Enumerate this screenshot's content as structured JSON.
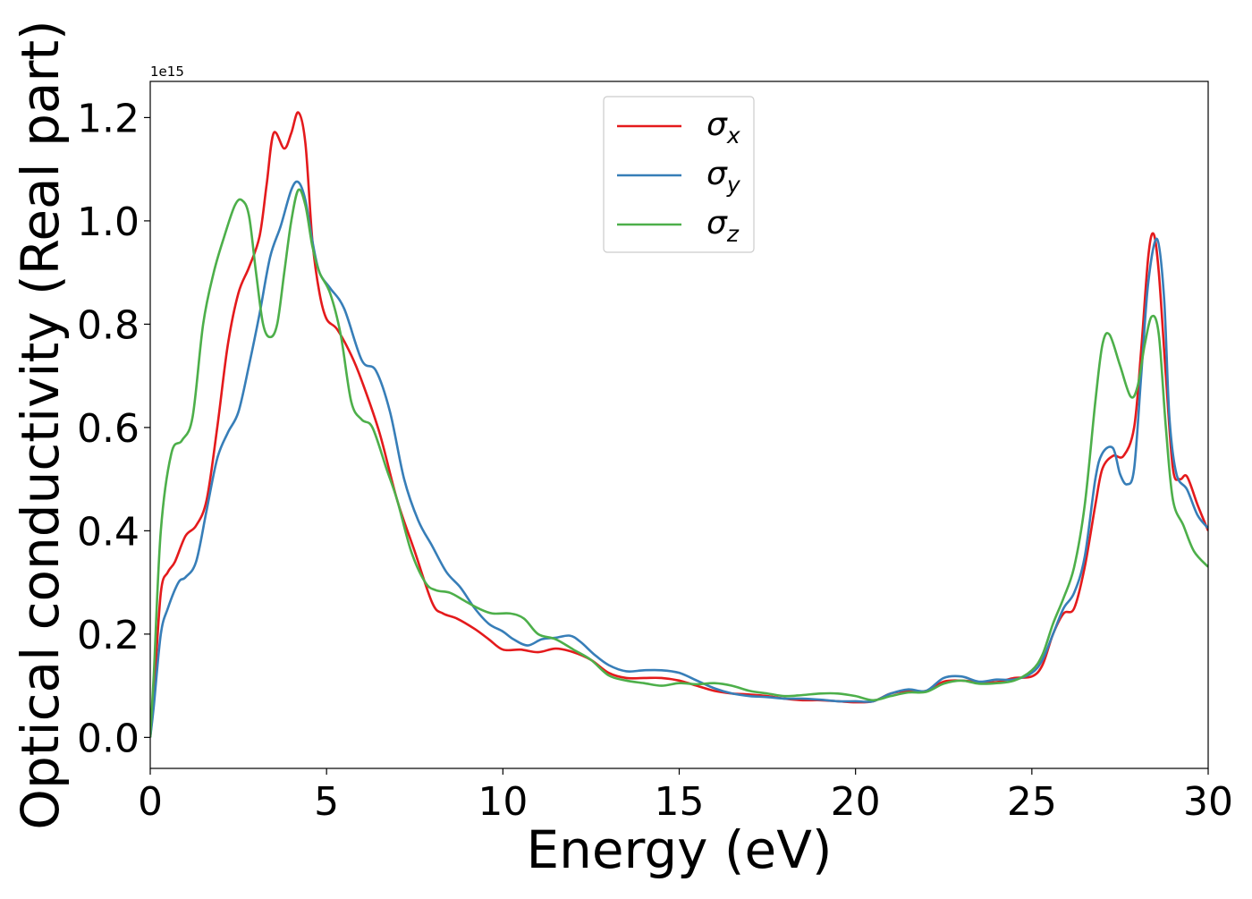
{
  "chart_data": {
    "type": "line",
    "title": "",
    "xlabel": "Energy (eV)",
    "ylabel": "Optical conductivity (Real part)",
    "y_offset_label": "1e15",
    "xlim": [
      0,
      30
    ],
    "ylim": [
      -0.06,
      1.27
    ],
    "x_ticks": [
      0,
      5,
      10,
      15,
      20,
      25,
      30
    ],
    "x_tick_labels": [
      "0",
      "5",
      "10",
      "15",
      "20",
      "25",
      "30"
    ],
    "y_ticks": [
      0.0,
      0.2,
      0.4,
      0.6,
      0.8,
      1.0,
      1.2
    ],
    "y_tick_labels": [
      "0.0",
      "0.2",
      "0.4",
      "0.6",
      "0.8",
      "1.0",
      "1.2"
    ],
    "grid": false,
    "legend_position": "top-center",
    "series": [
      {
        "name": "σx",
        "symbol": "σ",
        "subscript": "x",
        "color": "#e41a1c",
        "points": [
          [
            0,
            0.0
          ],
          [
            0.1,
            0.08
          ],
          [
            0.3,
            0.28
          ],
          [
            0.5,
            0.32
          ],
          [
            0.7,
            0.34
          ],
          [
            1.0,
            0.39
          ],
          [
            1.3,
            0.41
          ],
          [
            1.6,
            0.46
          ],
          [
            1.9,
            0.6
          ],
          [
            2.2,
            0.76
          ],
          [
            2.5,
            0.86
          ],
          [
            2.8,
            0.91
          ],
          [
            3.1,
            0.97
          ],
          [
            3.3,
            1.07
          ],
          [
            3.5,
            1.17
          ],
          [
            3.8,
            1.14
          ],
          [
            4.0,
            1.17
          ],
          [
            4.2,
            1.21
          ],
          [
            4.4,
            1.15
          ],
          [
            4.6,
            0.96
          ],
          [
            4.8,
            0.86
          ],
          [
            5.0,
            0.81
          ],
          [
            5.3,
            0.79
          ],
          [
            5.7,
            0.74
          ],
          [
            6.0,
            0.69
          ],
          [
            6.5,
            0.59
          ],
          [
            7.0,
            0.46
          ],
          [
            7.5,
            0.36
          ],
          [
            8.0,
            0.26
          ],
          [
            8.3,
            0.24
          ],
          [
            8.7,
            0.23
          ],
          [
            9.2,
            0.21
          ],
          [
            9.6,
            0.19
          ],
          [
            10.0,
            0.17
          ],
          [
            10.5,
            0.17
          ],
          [
            11.0,
            0.165
          ],
          [
            11.5,
            0.172
          ],
          [
            12.0,
            0.165
          ],
          [
            12.5,
            0.15
          ],
          [
            13.0,
            0.125
          ],
          [
            13.5,
            0.115
          ],
          [
            14.0,
            0.115
          ],
          [
            14.5,
            0.115
          ],
          [
            15.0,
            0.11
          ],
          [
            15.5,
            0.1
          ],
          [
            16.0,
            0.09
          ],
          [
            16.5,
            0.085
          ],
          [
            17.0,
            0.083
          ],
          [
            17.5,
            0.08
          ],
          [
            18.0,
            0.075
          ],
          [
            18.5,
            0.072
          ],
          [
            19.0,
            0.072
          ],
          [
            19.5,
            0.07
          ],
          [
            20.0,
            0.068
          ],
          [
            20.5,
            0.07
          ],
          [
            21.0,
            0.085
          ],
          [
            21.5,
            0.09
          ],
          [
            22.0,
            0.09
          ],
          [
            22.5,
            0.108
          ],
          [
            23.0,
            0.11
          ],
          [
            23.5,
            0.107
          ],
          [
            24.0,
            0.107
          ],
          [
            24.5,
            0.115
          ],
          [
            25.0,
            0.118
          ],
          [
            25.3,
            0.14
          ],
          [
            25.6,
            0.2
          ],
          [
            25.9,
            0.24
          ],
          [
            26.2,
            0.25
          ],
          [
            26.5,
            0.33
          ],
          [
            26.8,
            0.45
          ],
          [
            27.0,
            0.52
          ],
          [
            27.3,
            0.545
          ],
          [
            27.6,
            0.545
          ],
          [
            27.9,
            0.6
          ],
          [
            28.1,
            0.75
          ],
          [
            28.3,
            0.93
          ],
          [
            28.45,
            0.975
          ],
          [
            28.6,
            0.9
          ],
          [
            28.8,
            0.7
          ],
          [
            29.0,
            0.52
          ],
          [
            29.2,
            0.5
          ],
          [
            29.4,
            0.505
          ],
          [
            29.7,
            0.45
          ],
          [
            30.0,
            0.4
          ]
        ]
      },
      {
        "name": "σy",
        "symbol": "σ",
        "subscript": "y",
        "color": "#377eb8",
        "points": [
          [
            0,
            0.0
          ],
          [
            0.1,
            0.06
          ],
          [
            0.3,
            0.2
          ],
          [
            0.5,
            0.25
          ],
          [
            0.8,
            0.3
          ],
          [
            1.0,
            0.31
          ],
          [
            1.3,
            0.34
          ],
          [
            1.6,
            0.44
          ],
          [
            1.9,
            0.54
          ],
          [
            2.2,
            0.59
          ],
          [
            2.5,
            0.63
          ],
          [
            2.8,
            0.72
          ],
          [
            3.1,
            0.82
          ],
          [
            3.4,
            0.93
          ],
          [
            3.7,
            0.99
          ],
          [
            4.0,
            1.06
          ],
          [
            4.2,
            1.075
          ],
          [
            4.4,
            1.04
          ],
          [
            4.6,
            0.96
          ],
          [
            4.8,
            0.9
          ],
          [
            5.1,
            0.87
          ],
          [
            5.5,
            0.83
          ],
          [
            6.0,
            0.73
          ],
          [
            6.4,
            0.71
          ],
          [
            6.8,
            0.63
          ],
          [
            7.2,
            0.5
          ],
          [
            7.6,
            0.42
          ],
          [
            8.0,
            0.37
          ],
          [
            8.4,
            0.32
          ],
          [
            8.8,
            0.29
          ],
          [
            9.2,
            0.25
          ],
          [
            9.6,
            0.22
          ],
          [
            10.0,
            0.205
          ],
          [
            10.3,
            0.19
          ],
          [
            10.7,
            0.178
          ],
          [
            11.1,
            0.19
          ],
          [
            11.5,
            0.193
          ],
          [
            11.9,
            0.197
          ],
          [
            12.2,
            0.185
          ],
          [
            12.6,
            0.16
          ],
          [
            13.0,
            0.14
          ],
          [
            13.5,
            0.128
          ],
          [
            14.0,
            0.13
          ],
          [
            14.5,
            0.13
          ],
          [
            15.0,
            0.125
          ],
          [
            15.5,
            0.11
          ],
          [
            16.0,
            0.095
          ],
          [
            16.5,
            0.085
          ],
          [
            17.0,
            0.08
          ],
          [
            17.5,
            0.078
          ],
          [
            18.0,
            0.075
          ],
          [
            18.5,
            0.075
          ],
          [
            19.0,
            0.073
          ],
          [
            19.5,
            0.07
          ],
          [
            20.0,
            0.07
          ],
          [
            20.5,
            0.07
          ],
          [
            21.0,
            0.085
          ],
          [
            21.5,
            0.093
          ],
          [
            22.0,
            0.09
          ],
          [
            22.5,
            0.115
          ],
          [
            23.0,
            0.118
          ],
          [
            23.5,
            0.108
          ],
          [
            24.0,
            0.112
          ],
          [
            24.5,
            0.112
          ],
          [
            25.0,
            0.125
          ],
          [
            25.3,
            0.15
          ],
          [
            25.6,
            0.2
          ],
          [
            25.9,
            0.25
          ],
          [
            26.2,
            0.28
          ],
          [
            26.5,
            0.35
          ],
          [
            26.8,
            0.5
          ],
          [
            27.0,
            0.55
          ],
          [
            27.3,
            0.56
          ],
          [
            27.5,
            0.51
          ],
          [
            27.7,
            0.49
          ],
          [
            27.9,
            0.52
          ],
          [
            28.1,
            0.7
          ],
          [
            28.3,
            0.88
          ],
          [
            28.55,
            0.965
          ],
          [
            28.75,
            0.85
          ],
          [
            28.9,
            0.62
          ],
          [
            29.1,
            0.51
          ],
          [
            29.4,
            0.48
          ],
          [
            29.7,
            0.43
          ],
          [
            30.0,
            0.405
          ]
        ]
      },
      {
        "name": "σz",
        "symbol": "σ",
        "subscript": "z",
        "color": "#4daf4a",
        "points": [
          [
            0,
            0.0
          ],
          [
            0.1,
            0.12
          ],
          [
            0.3,
            0.4
          ],
          [
            0.6,
            0.55
          ],
          [
            0.9,
            0.575
          ],
          [
            1.2,
            0.62
          ],
          [
            1.5,
            0.8
          ],
          [
            1.8,
            0.9
          ],
          [
            2.1,
            0.97
          ],
          [
            2.4,
            1.03
          ],
          [
            2.6,
            1.04
          ],
          [
            2.8,
            1.01
          ],
          [
            3.0,
            0.9
          ],
          [
            3.2,
            0.8
          ],
          [
            3.4,
            0.775
          ],
          [
            3.6,
            0.8
          ],
          [
            3.8,
            0.9
          ],
          [
            4.0,
            1.0
          ],
          [
            4.2,
            1.06
          ],
          [
            4.4,
            1.03
          ],
          [
            4.6,
            0.95
          ],
          [
            4.8,
            0.9
          ],
          [
            5.1,
            0.86
          ],
          [
            5.4,
            0.78
          ],
          [
            5.7,
            0.65
          ],
          [
            6.0,
            0.615
          ],
          [
            6.3,
            0.6
          ],
          [
            6.7,
            0.52
          ],
          [
            7.0,
            0.46
          ],
          [
            7.4,
            0.36
          ],
          [
            7.8,
            0.3
          ],
          [
            8.1,
            0.285
          ],
          [
            8.5,
            0.28
          ],
          [
            8.9,
            0.265
          ],
          [
            9.3,
            0.25
          ],
          [
            9.7,
            0.24
          ],
          [
            10.2,
            0.24
          ],
          [
            10.6,
            0.23
          ],
          [
            11.0,
            0.2
          ],
          [
            11.5,
            0.19
          ],
          [
            12.0,
            0.17
          ],
          [
            12.5,
            0.15
          ],
          [
            13.0,
            0.12
          ],
          [
            13.5,
            0.11
          ],
          [
            14.0,
            0.105
          ],
          [
            14.5,
            0.1
          ],
          [
            15.0,
            0.105
          ],
          [
            15.5,
            0.103
          ],
          [
            16.0,
            0.105
          ],
          [
            16.5,
            0.1
          ],
          [
            17.0,
            0.09
          ],
          [
            17.5,
            0.085
          ],
          [
            18.0,
            0.08
          ],
          [
            18.5,
            0.082
          ],
          [
            19.0,
            0.085
          ],
          [
            19.5,
            0.085
          ],
          [
            20.0,
            0.08
          ],
          [
            20.5,
            0.072
          ],
          [
            21.0,
            0.08
          ],
          [
            21.5,
            0.087
          ],
          [
            22.0,
            0.088
          ],
          [
            22.5,
            0.104
          ],
          [
            23.0,
            0.11
          ],
          [
            23.5,
            0.104
          ],
          [
            24.0,
            0.105
          ],
          [
            24.5,
            0.11
          ],
          [
            25.0,
            0.13
          ],
          [
            25.3,
            0.16
          ],
          [
            25.6,
            0.22
          ],
          [
            25.9,
            0.27
          ],
          [
            26.2,
            0.33
          ],
          [
            26.5,
            0.45
          ],
          [
            26.8,
            0.65
          ],
          [
            27.0,
            0.76
          ],
          [
            27.2,
            0.78
          ],
          [
            27.5,
            0.72
          ],
          [
            27.8,
            0.66
          ],
          [
            28.0,
            0.68
          ],
          [
            28.2,
            0.76
          ],
          [
            28.4,
            0.815
          ],
          [
            28.6,
            0.78
          ],
          [
            28.8,
            0.6
          ],
          [
            29.0,
            0.46
          ],
          [
            29.3,
            0.41
          ],
          [
            29.6,
            0.36
          ],
          [
            30.0,
            0.33
          ]
        ]
      }
    ]
  }
}
